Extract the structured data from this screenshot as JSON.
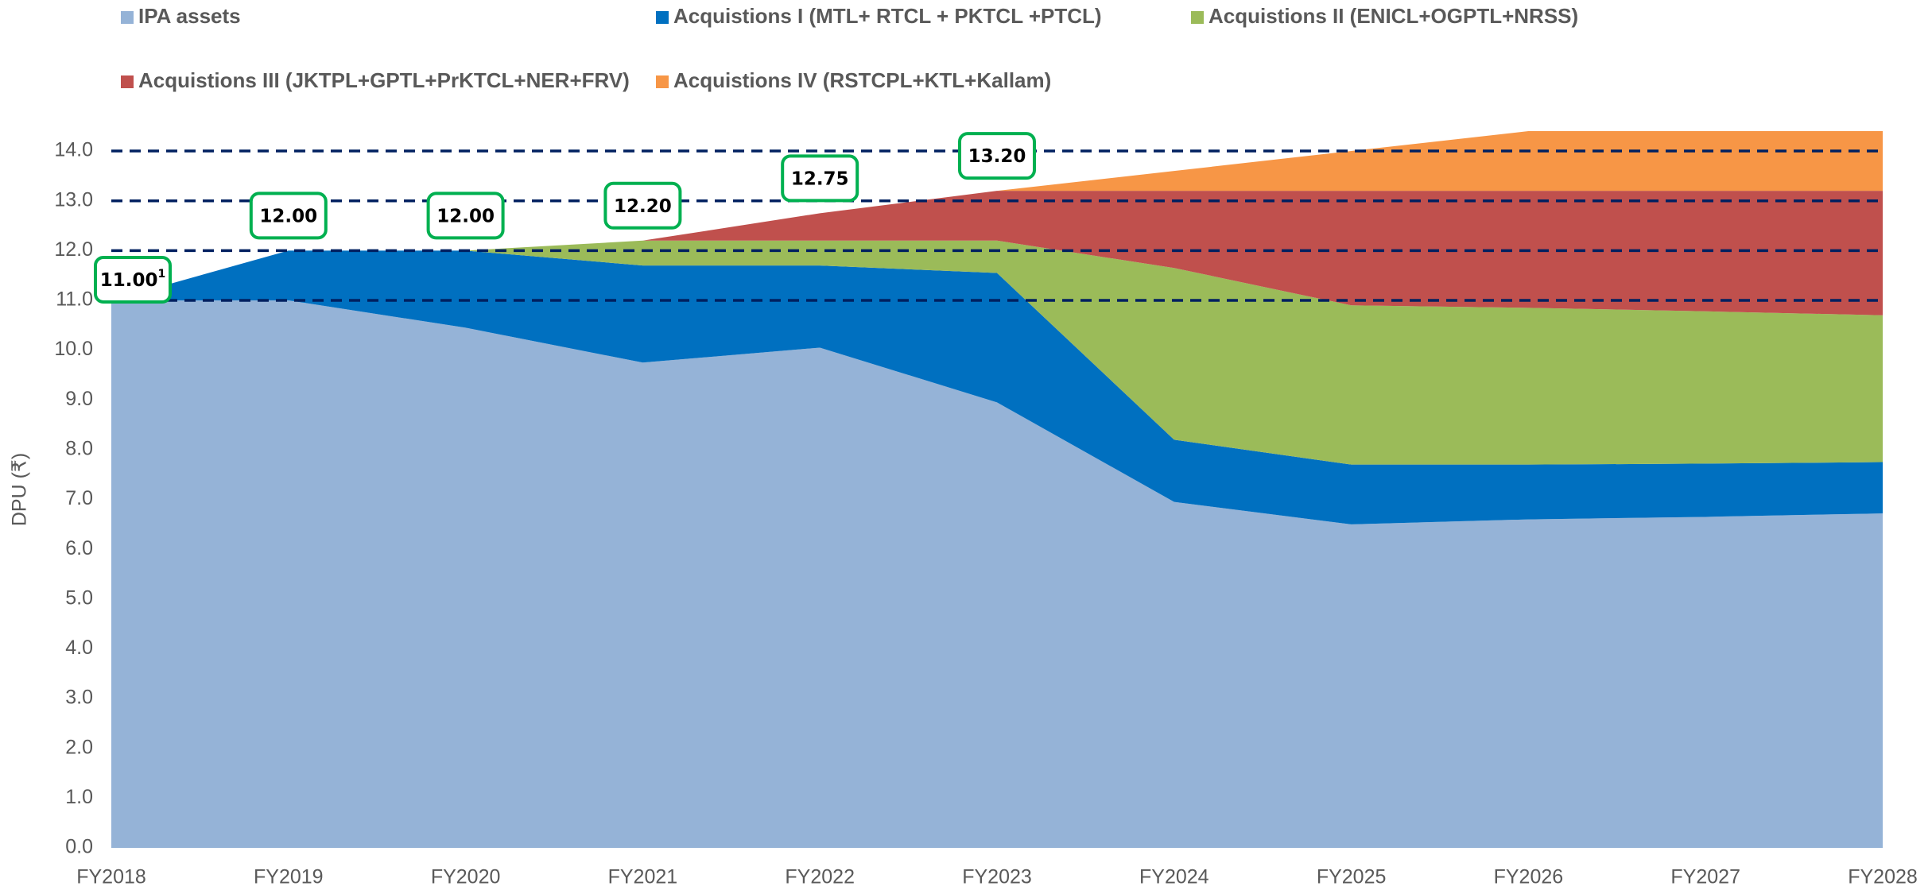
{
  "chart_data": {
    "type": "stacked_area",
    "y_label": "DPU (₹)",
    "categories": [
      "FY2018",
      "FY2019",
      "FY2020",
      "FY2021",
      "FY2022",
      "FY2023",
      "FY2024",
      "FY2025",
      "FY2026",
      "FY2027",
      "FY2028"
    ],
    "series": [
      {
        "name": "IPA assets",
        "color": "#95b3d7",
        "values": [
          11.0,
          11.0,
          10.45,
          9.75,
          10.05,
          8.95,
          6.95,
          6.5,
          6.6,
          6.65,
          6.72
        ]
      },
      {
        "name": "Acquistions I (MTL+ RTCL + PKTCL +PTCL)",
        "color": "#0070c0",
        "values": [
          0.0,
          1.0,
          1.55,
          1.95,
          1.65,
          2.6,
          1.25,
          1.2,
          1.1,
          1.07,
          1.03
        ]
      },
      {
        "name": "Acquistions II (ENICL+OGPTL+NRSS)",
        "color": "#9bbb59",
        "values": [
          0.0,
          0.0,
          0.0,
          0.5,
          0.5,
          0.65,
          3.45,
          3.2,
          3.15,
          3.06,
          2.95
        ]
      },
      {
        "name": "Acquistions III (JKTPL+GPTL+PrKTCL+NER+FRV)",
        "color": "#c0504d",
        "values": [
          0.0,
          0.0,
          0.0,
          0.0,
          0.55,
          1.0,
          1.55,
          2.3,
          2.35,
          2.42,
          2.5
        ]
      },
      {
        "name": "Acquistions IV (RSTCPL+KTL+Kallam)",
        "color": "#f79646",
        "values": [
          0.0,
          0.0,
          0.0,
          0.0,
          0.0,
          0.0,
          0.4,
          0.8,
          1.2,
          1.2,
          1.2
        ]
      }
    ],
    "ylim": [
      0,
      14.4
    ],
    "yticks": [
      {
        "value": 0,
        "label": "0.0"
      },
      {
        "value": 1,
        "label": "1.0"
      },
      {
        "value": 2,
        "label": "2.0"
      },
      {
        "value": 3,
        "label": "3.0"
      },
      {
        "value": 4,
        "label": "4.0"
      },
      {
        "value": 5,
        "label": "5.0"
      },
      {
        "value": 6,
        "label": "6.0"
      },
      {
        "value": 7,
        "label": "7.0"
      },
      {
        "value": 8,
        "label": "8.0"
      },
      {
        "value": 9,
        "label": "9.0"
      },
      {
        "value": 10,
        "label": "10.0"
      },
      {
        "value": 11,
        "label": "11.0"
      },
      {
        "value": 12,
        "label": "12.0"
      },
      {
        "value": 13,
        "label": "13.0"
      },
      {
        "value": 14,
        "label": "14.0"
      }
    ],
    "reference_lines": [
      11,
      12,
      13,
      14
    ],
    "reference_line_color": "#002060",
    "annotations": [
      {
        "x": "FY2018",
        "value": 11.0,
        "label": "11.00",
        "footnote": "1"
      },
      {
        "x": "FY2019",
        "value": 12.0,
        "label": "12.00"
      },
      {
        "x": "FY2020",
        "value": 12.0,
        "label": "12.00"
      },
      {
        "x": "FY2021",
        "value": 12.2,
        "label": "12.20"
      },
      {
        "x": "FY2022",
        "value": 12.75,
        "label": "12.75"
      },
      {
        "x": "FY2023",
        "value": 13.2,
        "label": "13.20"
      }
    ],
    "annotation_color": "#00b050"
  }
}
